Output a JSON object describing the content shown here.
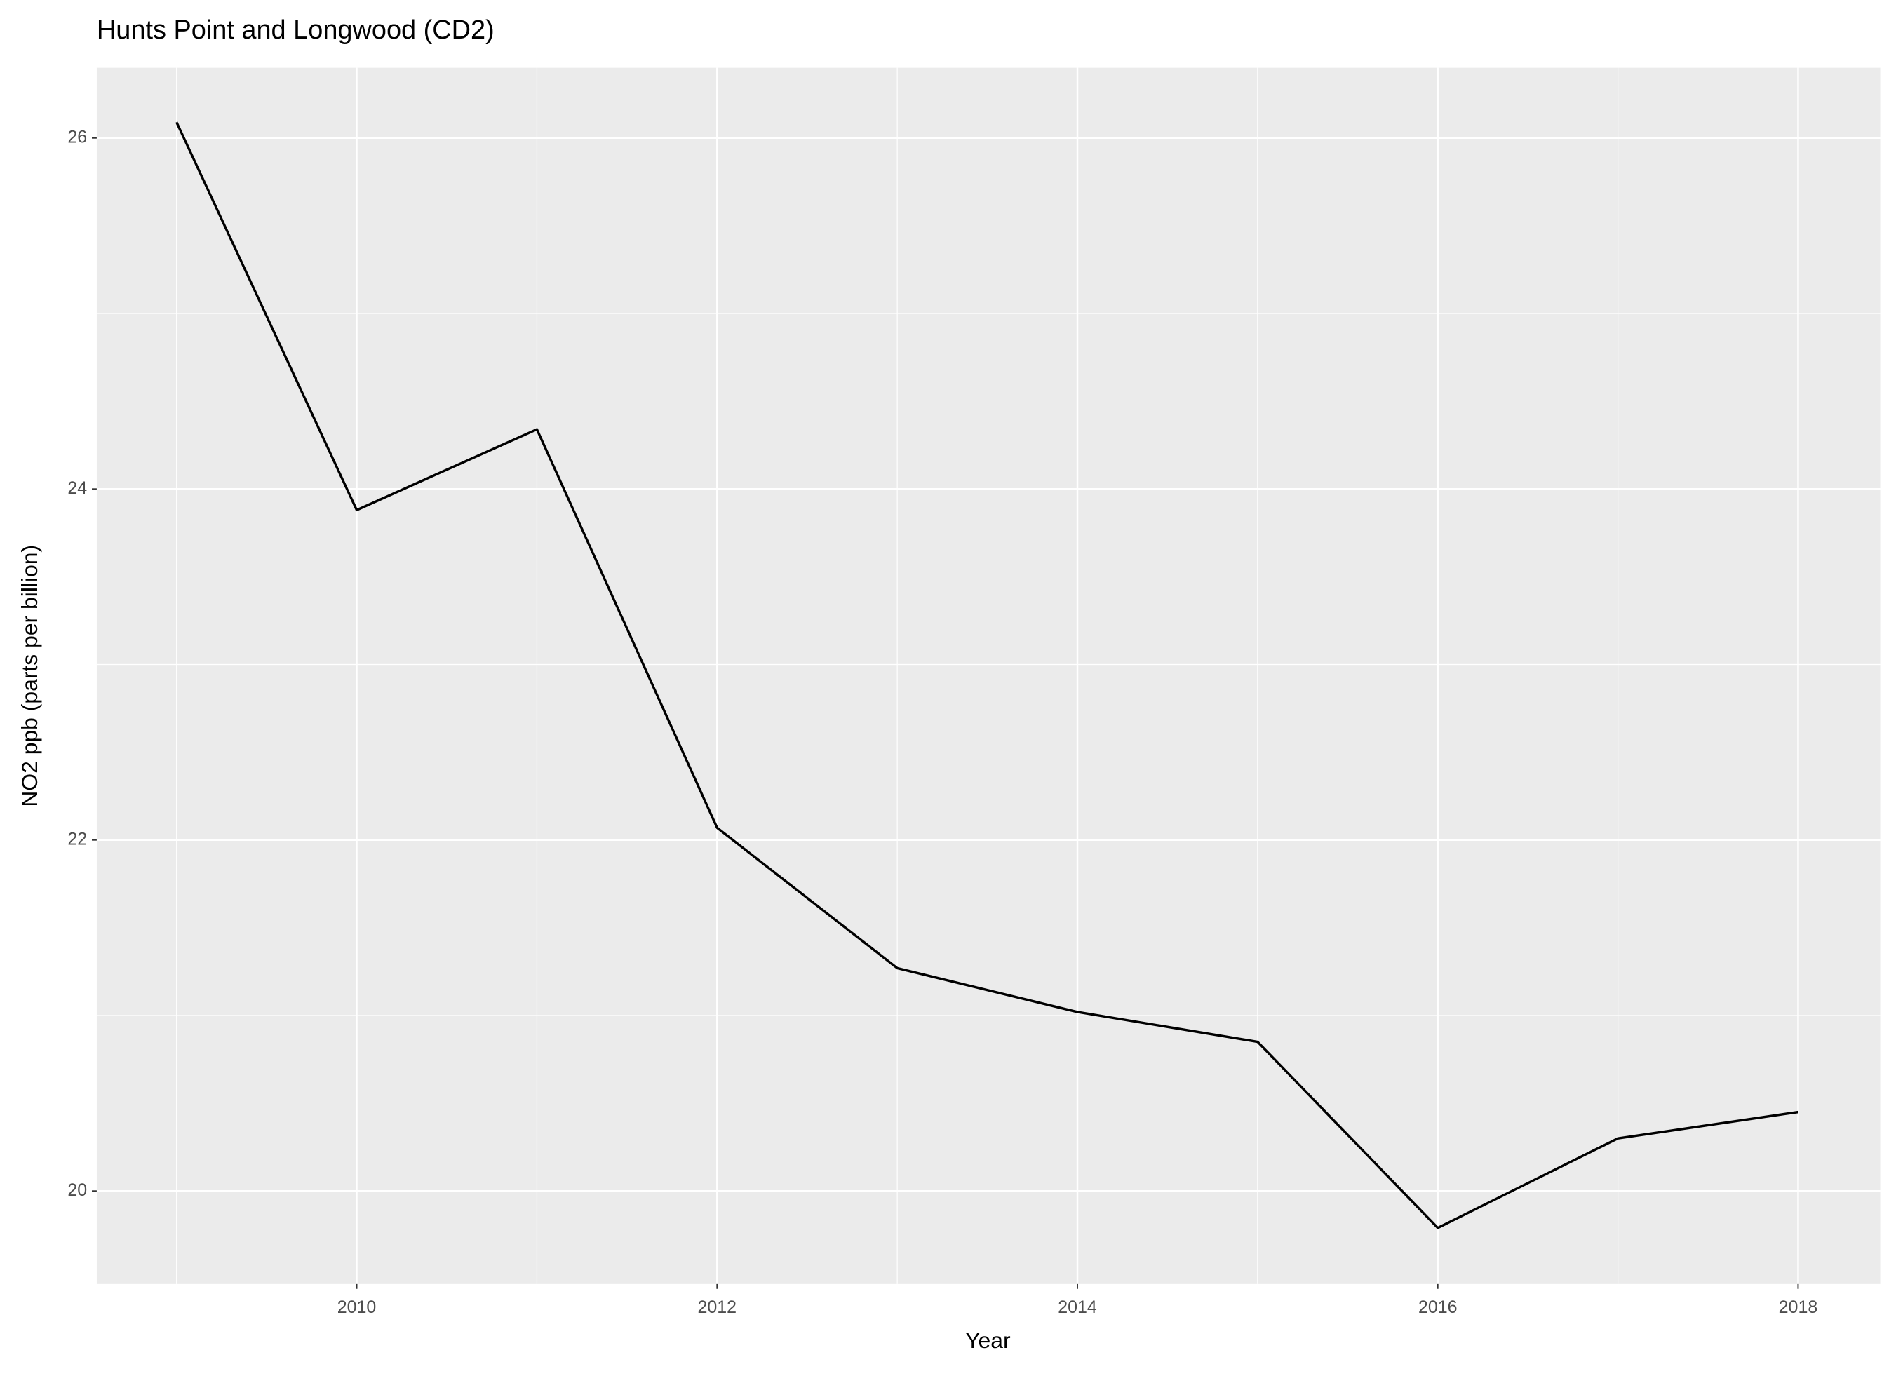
{
  "chart_data": {
    "type": "line",
    "title": "Hunts Point and Longwood (CD2)",
    "x_label": "Year",
    "y_label": "NO2 ppb (parts per billion)",
    "x": [
      2009,
      2010,
      2011,
      2012,
      2013,
      2014,
      2015,
      2016,
      2017,
      2018
    ],
    "series": [
      {
        "name": "NO2",
        "color": "#000000",
        "values": [
          26.09,
          23.88,
          24.34,
          22.07,
          21.27,
          21.02,
          20.85,
          19.79,
          20.3,
          20.45
        ]
      }
    ],
    "xlim": [
      2008.557,
      2018.456
    ],
    "ylim": [
      19.47,
      26.4
    ],
    "xticks": [
      2010,
      2012,
      2014,
      2016,
      2018
    ],
    "yticks": [
      20,
      22,
      24,
      26
    ],
    "grid": true,
    "legend": false
  }
}
